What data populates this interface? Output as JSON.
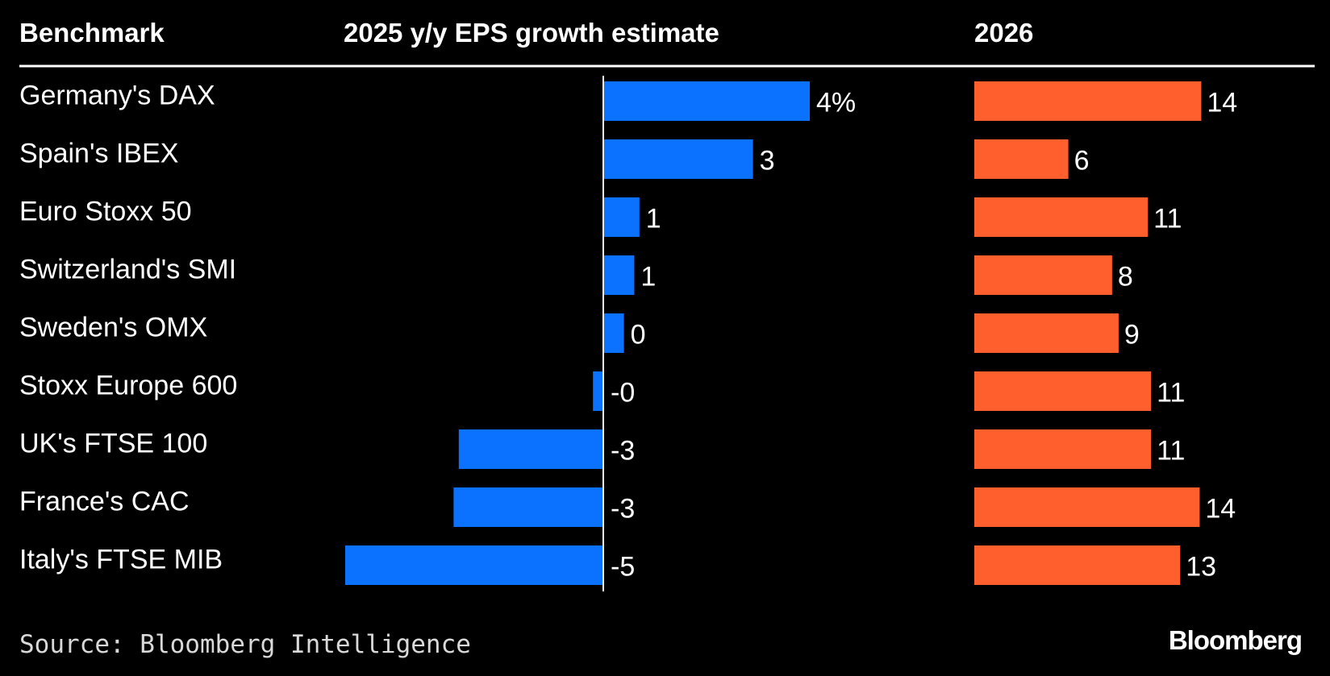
{
  "chart_data": {
    "type": "bar",
    "orientation": "horizontal",
    "headers": {
      "category": "Benchmark",
      "series_2025": "2025 y/y EPS growth estimate",
      "series_2026": "2026"
    },
    "categories": [
      "Germany's DAX",
      "Spain's IBEX",
      "Euro Stoxx 50",
      "Switzerland's SMI",
      "Sweden's OMX",
      "Stoxx Europe 600",
      "UK's FTSE 100",
      "France's CAC",
      "Italy's FTSE MIB"
    ],
    "series": [
      {
        "name": "2025 y/y EPS growth estimate",
        "color": "#0a72ff",
        "values": [
          4.0,
          2.9,
          0.7,
          0.6,
          0.4,
          -0.2,
          -2.8,
          -2.9,
          -5.0
        ],
        "labels": [
          "4%",
          "3",
          "1",
          "1",
          "0",
          "-0",
          "-3",
          "-3",
          "-5"
        ]
      },
      {
        "name": "2026",
        "color": "#ff5f2d",
        "values": [
          14.0,
          5.8,
          10.7,
          8.5,
          8.9,
          10.9,
          10.9,
          13.9,
          12.7
        ],
        "labels": [
          "14",
          "6",
          "11",
          "8",
          "9",
          "11",
          "11",
          "14",
          "13"
        ]
      }
    ]
  },
  "footer": {
    "source": "Source: Bloomberg Intelligence",
    "brand": "Bloomberg"
  }
}
